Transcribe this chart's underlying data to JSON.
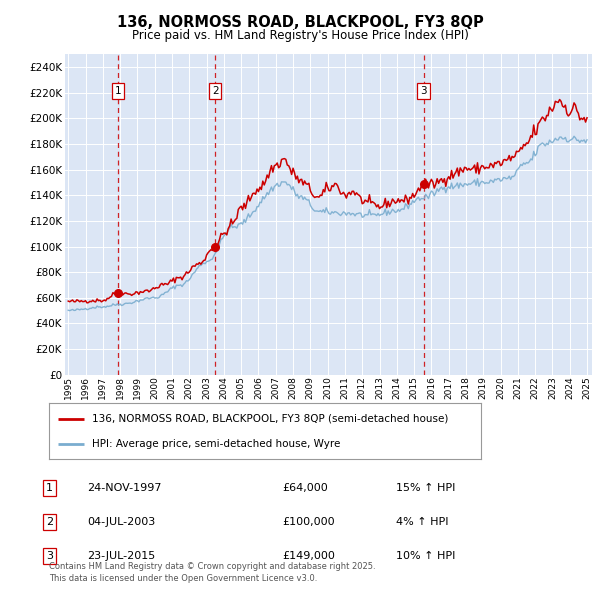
{
  "title": "136, NORMOSS ROAD, BLACKPOOL, FY3 8QP",
  "subtitle": "Price paid vs. HM Land Registry's House Price Index (HPI)",
  "ylim": [
    0,
    250000
  ],
  "yticks": [
    0,
    20000,
    40000,
    60000,
    80000,
    100000,
    120000,
    140000,
    160000,
    180000,
    200000,
    220000,
    240000
  ],
  "background_color": "#ffffff",
  "plot_bg_color": "#dce6f5",
  "grid_color": "#ffffff",
  "sale_color": "#cc0000",
  "hpi_color": "#7aadcf",
  "sale_label": "136, NORMOSS ROAD, BLACKPOOL, FY3 8QP (semi-detached house)",
  "hpi_label": "HPI: Average price, semi-detached house, Wyre",
  "transactions": [
    {
      "num": 1,
      "date": "24-NOV-1997",
      "price": 64000,
      "pct": "15%",
      "dir": "↑"
    },
    {
      "num": 2,
      "date": "04-JUL-2003",
      "price": 100000,
      "pct": "4%",
      "dir": "↑"
    },
    {
      "num": 3,
      "date": "23-JUL-2015",
      "price": 149000,
      "pct": "10%",
      "dir": "↑"
    }
  ],
  "transaction_dates_decimal": [
    1997.89,
    2003.5,
    2015.55
  ],
  "transaction_prices": [
    64000,
    100000,
    149000
  ],
  "copyright_text": "Contains HM Land Registry data © Crown copyright and database right 2025.\nThis data is licensed under the Open Government Licence v3.0.",
  "x_start_year": 1995,
  "x_end_year": 2025,
  "hpi_anchors": {
    "1995.0": 50000,
    "1997.0": 53000,
    "1998.0": 55000,
    "2000.0": 60000,
    "2001.5": 70000,
    "2003.0": 88000,
    "2004.5": 115000,
    "2007.5": 150000,
    "2008.5": 138000,
    "2009.5": 127000,
    "2011.0": 126000,
    "2012.5": 124000,
    "2014.0": 128000,
    "2015.5": 138000,
    "2017.0": 147000,
    "2019.0": 150000,
    "2020.5": 153000,
    "2021.5": 165000,
    "2022.5": 180000,
    "2023.5": 185000,
    "2024.5": 183000,
    "2025.3": 182000
  },
  "sale_anchors": {
    "1995.0": 57000,
    "1997.0": 58000,
    "1997.89": 64000,
    "1998.5": 63000,
    "1999.5": 65000,
    "2000.5": 70000,
    "2001.5": 76000,
    "2002.5": 86000,
    "2003.5": 100000,
    "2004.0": 110000,
    "2004.5": 118000,
    "2005.0": 130000,
    "2006.0": 145000,
    "2007.0": 163000,
    "2007.5": 168000,
    "2008.0": 157000,
    "2008.5": 150000,
    "2009.5": 138000,
    "2010.0": 145000,
    "2010.5": 148000,
    "2011.0": 140000,
    "2011.5": 143000,
    "2012.0": 136000,
    "2012.5": 133000,
    "2013.0": 131000,
    "2013.5": 134000,
    "2014.0": 136000,
    "2014.5": 136000,
    "2015.0": 140000,
    "2015.55": 149000,
    "2016.0": 148000,
    "2016.5": 151000,
    "2017.0": 155000,
    "2017.5": 158000,
    "2018.0": 161000,
    "2018.5": 160000,
    "2019.0": 162000,
    "2019.5": 163000,
    "2020.0": 165000,
    "2020.5": 168000,
    "2021.0": 172000,
    "2021.5": 180000,
    "2022.0": 190000,
    "2022.5": 200000,
    "2023.0": 208000,
    "2023.3": 215000,
    "2023.7": 210000,
    "2024.0": 205000,
    "2024.3": 208000,
    "2024.7": 200000,
    "2025.3": 198000
  }
}
